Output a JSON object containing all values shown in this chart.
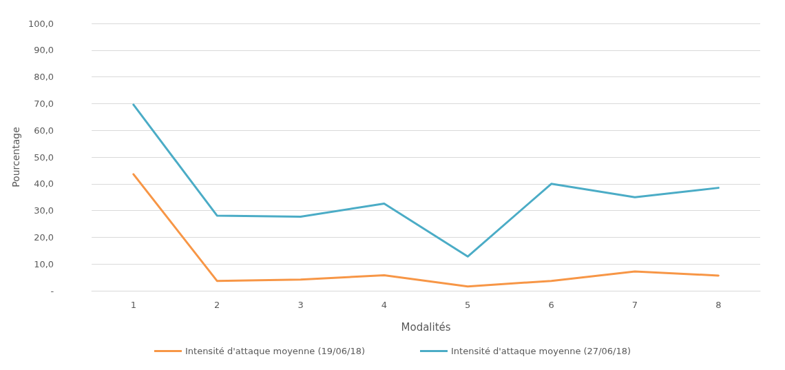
{
  "chart_data": {
    "type": "line",
    "xlabel": "Modalités",
    "ylabel": "Pourcentage",
    "categories": [
      "1",
      "2",
      "3",
      "4",
      "5",
      "6",
      "7",
      "8"
    ],
    "series": [
      {
        "name": "Intensité d'attaque moyenne (19/06/18)",
        "color": "#f79646",
        "values": [
          43.6,
          3.7,
          4.2,
          5.8,
          1.6,
          3.7,
          7.2,
          5.7
        ]
      },
      {
        "name": "Intensité d'attaque moyenne (27/06/18)",
        "color": "#4bacc6",
        "values": [
          69.6,
          28.1,
          27.7,
          32.6,
          12.8,
          40.0,
          35.0,
          38.5
        ]
      }
    ],
    "ylim": [
      0,
      100
    ],
    "yticks": [
      {
        "value": 0,
        "label": "-"
      },
      {
        "value": 10,
        "label": "10,0"
      },
      {
        "value": 20,
        "label": "20,0"
      },
      {
        "value": 30,
        "label": "30,0"
      },
      {
        "value": 40,
        "label": "40,0"
      },
      {
        "value": 50,
        "label": "50,0"
      },
      {
        "value": 60,
        "label": "60,0"
      },
      {
        "value": 70,
        "label": "70,0"
      },
      {
        "value": 80,
        "label": "80,0"
      },
      {
        "value": 90,
        "label": "90,0"
      },
      {
        "value": 100,
        "label": "100,0"
      }
    ],
    "grid": "y",
    "legend": "bottom",
    "marker": "none",
    "line_style": "solid"
  }
}
